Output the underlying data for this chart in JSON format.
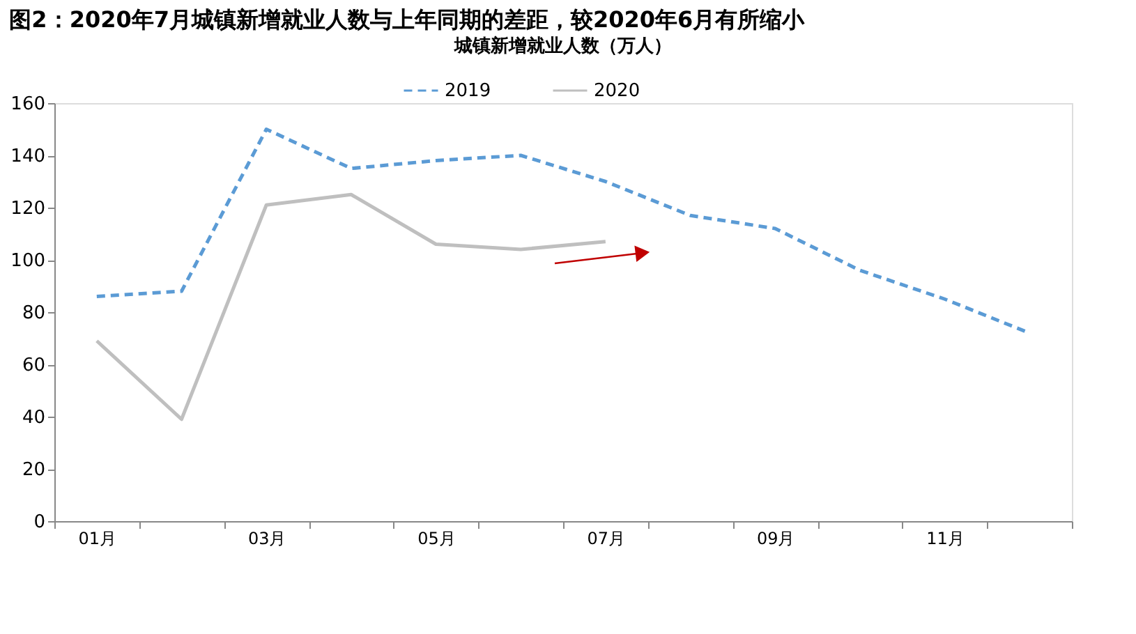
{
  "chart_data": {
    "type": "line",
    "title": "图2：2020年7月城镇新增就业人数与上年同期的差距，较2020年6月有所缩小",
    "subtitle": "城镇新增就业人数（万人）",
    "categories": [
      "01月",
      null,
      "03月",
      null,
      "05月",
      null,
      "07月",
      null,
      "09月",
      null,
      "11月",
      null
    ],
    "series": [
      {
        "name": "2019",
        "color": "#5b9bd5",
        "line_style": "dashed",
        "values": [
          86,
          88,
          150,
          135,
          138,
          140,
          130,
          117,
          112,
          96,
          85,
          72
        ]
      },
      {
        "name": "2020",
        "color": "#bfbfbf",
        "line_style": "solid",
        "values": [
          69,
          39,
          121,
          125,
          106,
          104,
          107,
          null,
          null,
          null,
          null,
          null
        ]
      }
    ],
    "ylim": [
      0,
      160
    ],
    "yticks": [
      0,
      20,
      40,
      60,
      80,
      100,
      120,
      140,
      160
    ],
    "legend": "top"
  }
}
